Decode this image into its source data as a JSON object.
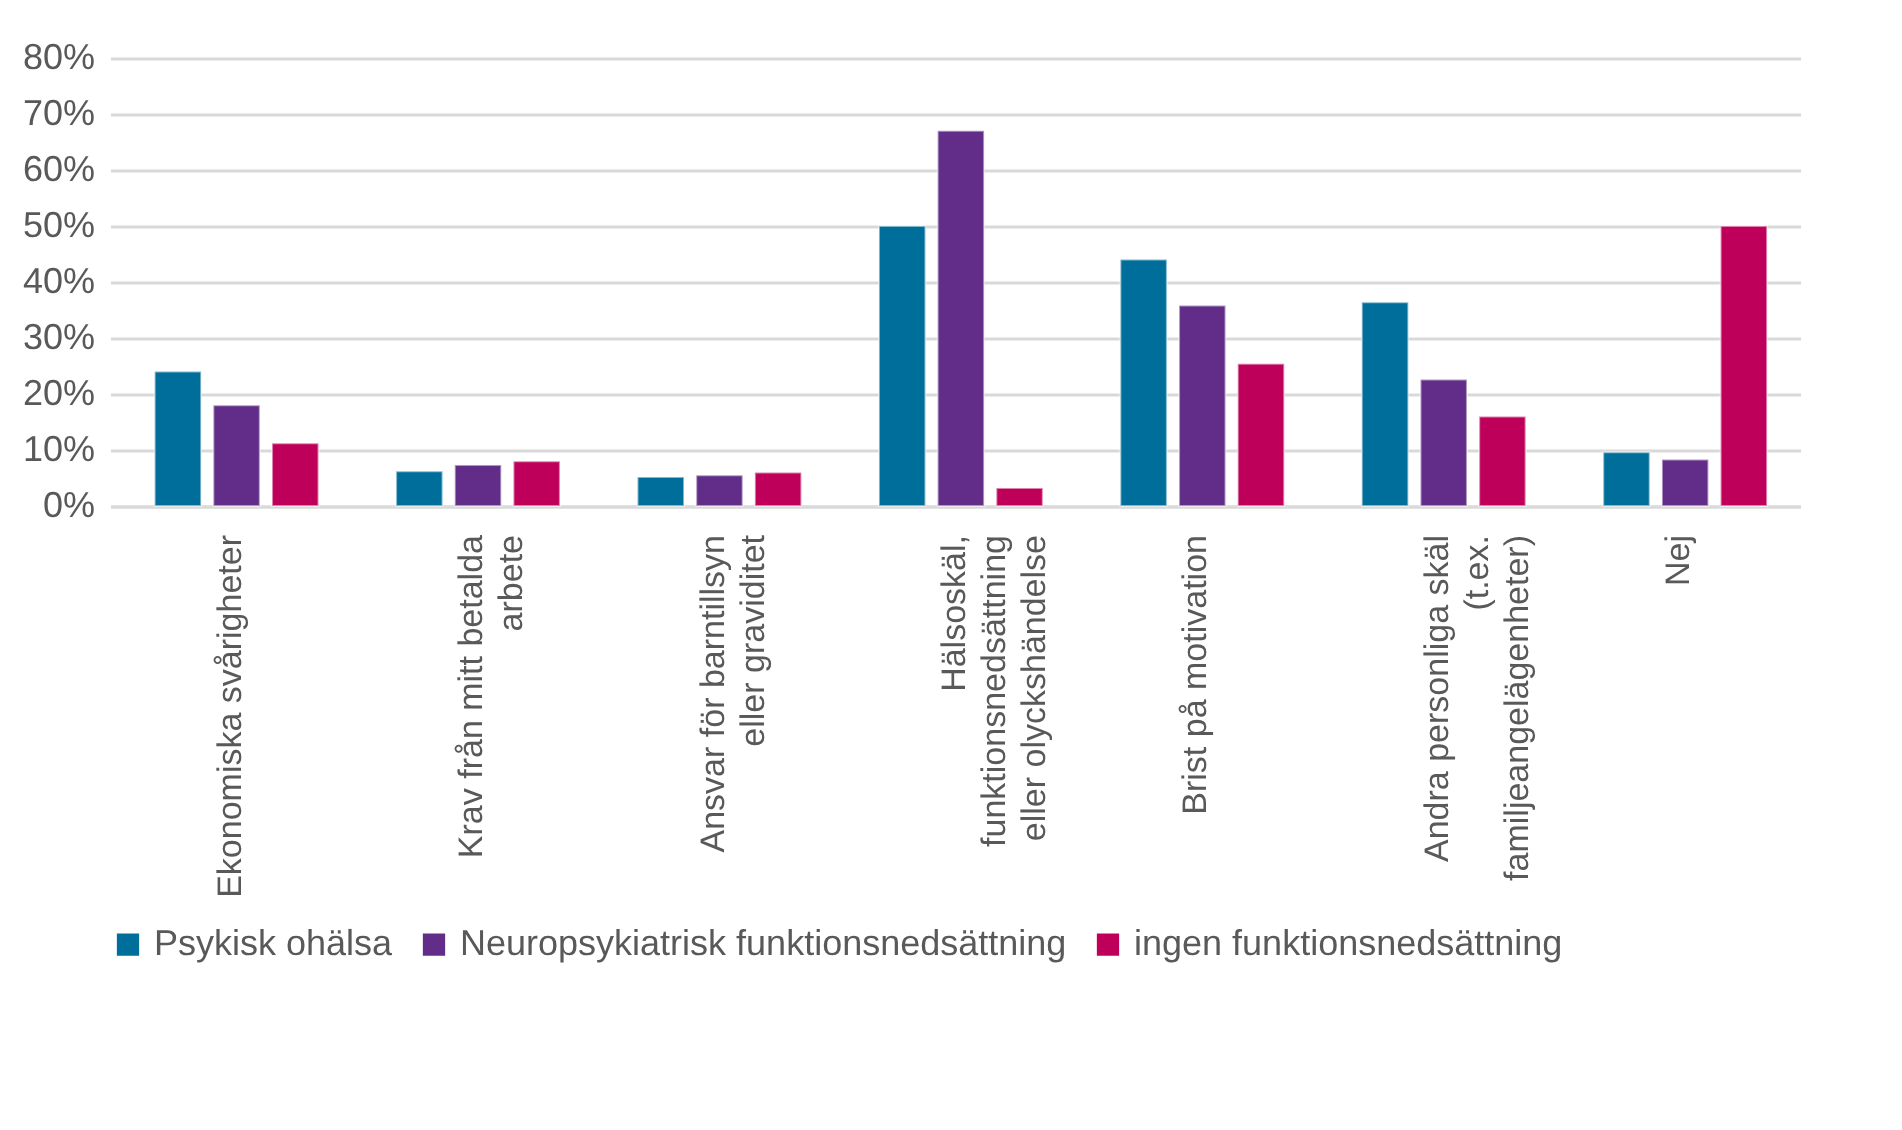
{
  "chart_data": {
    "type": "bar",
    "categories": [
      "Ekonomiska svårigheter",
      "Krav från mitt betalda arbete",
      "Ansvar för barntillsyn eller graviditet",
      "Hälsoskäl, funktionsnedsättning eller olyckshändelse",
      "Brist på motivation",
      "Andra personliga skäl (t.ex. familjeangelägenheter)",
      "Nej"
    ],
    "series": [
      {
        "name": "Psykisk ohälsa",
        "color": "#006e9a",
        "values": [
          24,
          6.2,
          5.2,
          50,
          44,
          36.4,
          9.6
        ]
      },
      {
        "name": "Neuropsykiatrisk funktionsnedsättning",
        "color": "#622d88",
        "values": [
          18,
          7.3,
          5.5,
          67,
          35.8,
          22.6,
          8.3
        ]
      },
      {
        "name": "ingen funktionsnedsättning",
        "color": "#be005a",
        "values": [
          11.2,
          8,
          6,
          3.2,
          25.4,
          16,
          50
        ]
      }
    ],
    "ylim": [
      0,
      80
    ],
    "yticks": [
      {
        "value": 0,
        "label": "0%"
      },
      {
        "value": 10,
        "label": "10%"
      },
      {
        "value": 20,
        "label": "20%"
      },
      {
        "value": 30,
        "label": "30%"
      },
      {
        "value": 40,
        "label": "40%"
      },
      {
        "value": 50,
        "label": "50%"
      },
      {
        "value": 60,
        "label": "60%"
      },
      {
        "value": 70,
        "label": "70%"
      },
      {
        "value": 80,
        "label": "80%"
      }
    ],
    "grid": "y",
    "legend": "bottom"
  }
}
